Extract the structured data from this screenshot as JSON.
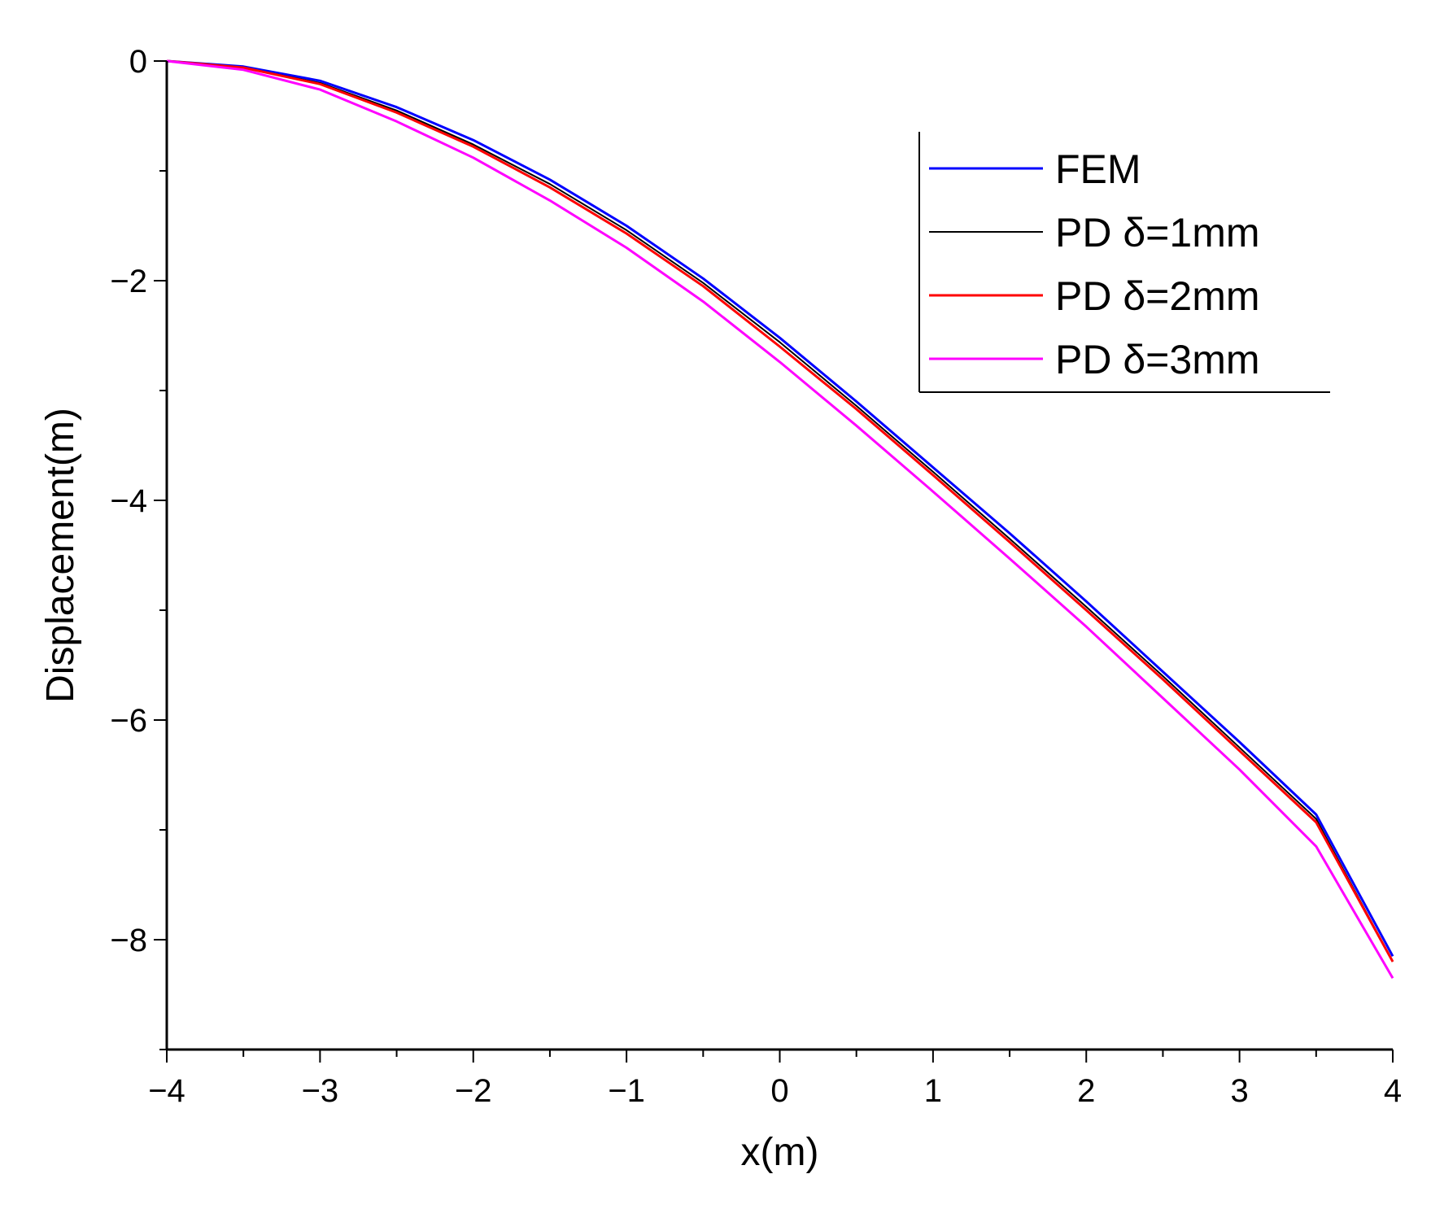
{
  "chart_data": {
    "type": "line",
    "title": "",
    "xlabel": "x(m)",
    "ylabel": "Displacement(m)",
    "xlim": [
      -4,
      4
    ],
    "ylim": [
      -9,
      0
    ],
    "x_ticks": [
      -4,
      -3,
      -2,
      -1,
      0,
      1,
      2,
      3,
      4
    ],
    "x_tick_labels": [
      "−4",
      "−3",
      "−2",
      "−1",
      "0",
      "1",
      "2",
      "3",
      "4"
    ],
    "y_ticks": [
      0,
      -2,
      -4,
      -6,
      -8
    ],
    "y_tick_labels": [
      "0",
      "−2",
      "−4",
      "−6",
      "−8"
    ],
    "grid": false,
    "legend_position": "top-right",
    "x": [
      -4,
      -3.5,
      -3,
      -2.5,
      -2,
      -1.5,
      -1,
      -0.5,
      0,
      0.5,
      1,
      1.5,
      2,
      2.5,
      3,
      3.5,
      4
    ],
    "series": [
      {
        "name": "FEM",
        "color": "#0000ff",
        "values": [
          0,
          -0.05,
          -0.18,
          -0.42,
          -0.72,
          -1.08,
          -1.5,
          -1.98,
          -2.52,
          -3.1,
          -3.7,
          -4.3,
          -4.92,
          -5.56,
          -6.2,
          -6.86,
          -8.15
        ]
      },
      {
        "name": "PD δ=1mm",
        "color": "#000000",
        "values": [
          0,
          -0.06,
          -0.2,
          -0.45,
          -0.76,
          -1.12,
          -1.54,
          -2.02,
          -2.56,
          -3.14,
          -3.74,
          -4.35,
          -4.97,
          -5.6,
          -6.25,
          -6.9,
          -8.2
        ]
      },
      {
        "name": "PD δ=2mm",
        "color": "#ff0000",
        "values": [
          0,
          -0.06,
          -0.21,
          -0.47,
          -0.78,
          -1.15,
          -1.57,
          -2.05,
          -2.6,
          -3.17,
          -3.77,
          -4.38,
          -5.0,
          -5.63,
          -6.28,
          -6.93,
          -8.2
        ]
      },
      {
        "name": "PD δ=3mm",
        "color": "#ff00ff",
        "values": [
          0,
          -0.08,
          -0.26,
          -0.55,
          -0.88,
          -1.27,
          -1.7,
          -2.19,
          -2.74,
          -3.32,
          -3.92,
          -4.53,
          -5.15,
          -5.8,
          -6.45,
          -7.15,
          -8.35
        ]
      }
    ]
  }
}
